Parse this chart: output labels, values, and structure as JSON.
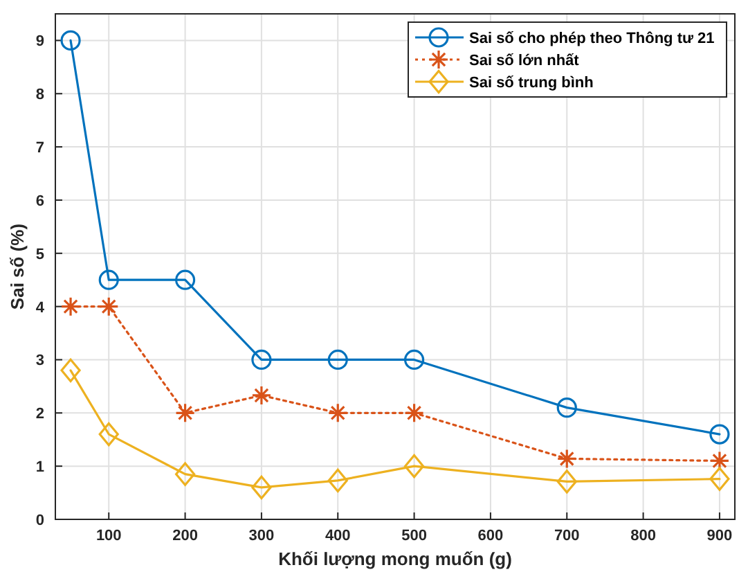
{
  "chart_data": {
    "type": "line",
    "xlabel": "Khối lượng mong muốn (g)",
    "ylabel": "Sai số (%)",
    "x": [
      50,
      100,
      200,
      300,
      400,
      500,
      700,
      900
    ],
    "series": [
      {
        "name": "Sai số cho phép theo Thông tư 21",
        "color": "#0072bd",
        "marker": "circle",
        "line_style": "solid",
        "values": [
          9,
          4.5,
          4.5,
          3,
          3,
          3,
          2.1,
          1.6
        ]
      },
      {
        "name": "Sai số lớn nhất",
        "color": "#d95319",
        "marker": "cross",
        "line_style": "dotted",
        "values": [
          4,
          4,
          2,
          2.33,
          2,
          2,
          1.14,
          1.1
        ]
      },
      {
        "name": "Sai số trung bình",
        "color": "#edb120",
        "marker": "diamond",
        "line_style": "solid",
        "values": [
          2.8,
          1.6,
          0.85,
          0.6,
          0.73,
          1.0,
          0.71,
          0.76
        ]
      }
    ],
    "xlim": [
      30,
      920
    ],
    "xticks": [
      100,
      200,
      300,
      400,
      500,
      600,
      700,
      800,
      900
    ],
    "ylim": [
      0,
      9.5
    ],
    "yticks": [
      0,
      1,
      2,
      3,
      4,
      5,
      6,
      7,
      8,
      9
    ],
    "grid": true,
    "legend": "top right"
  }
}
